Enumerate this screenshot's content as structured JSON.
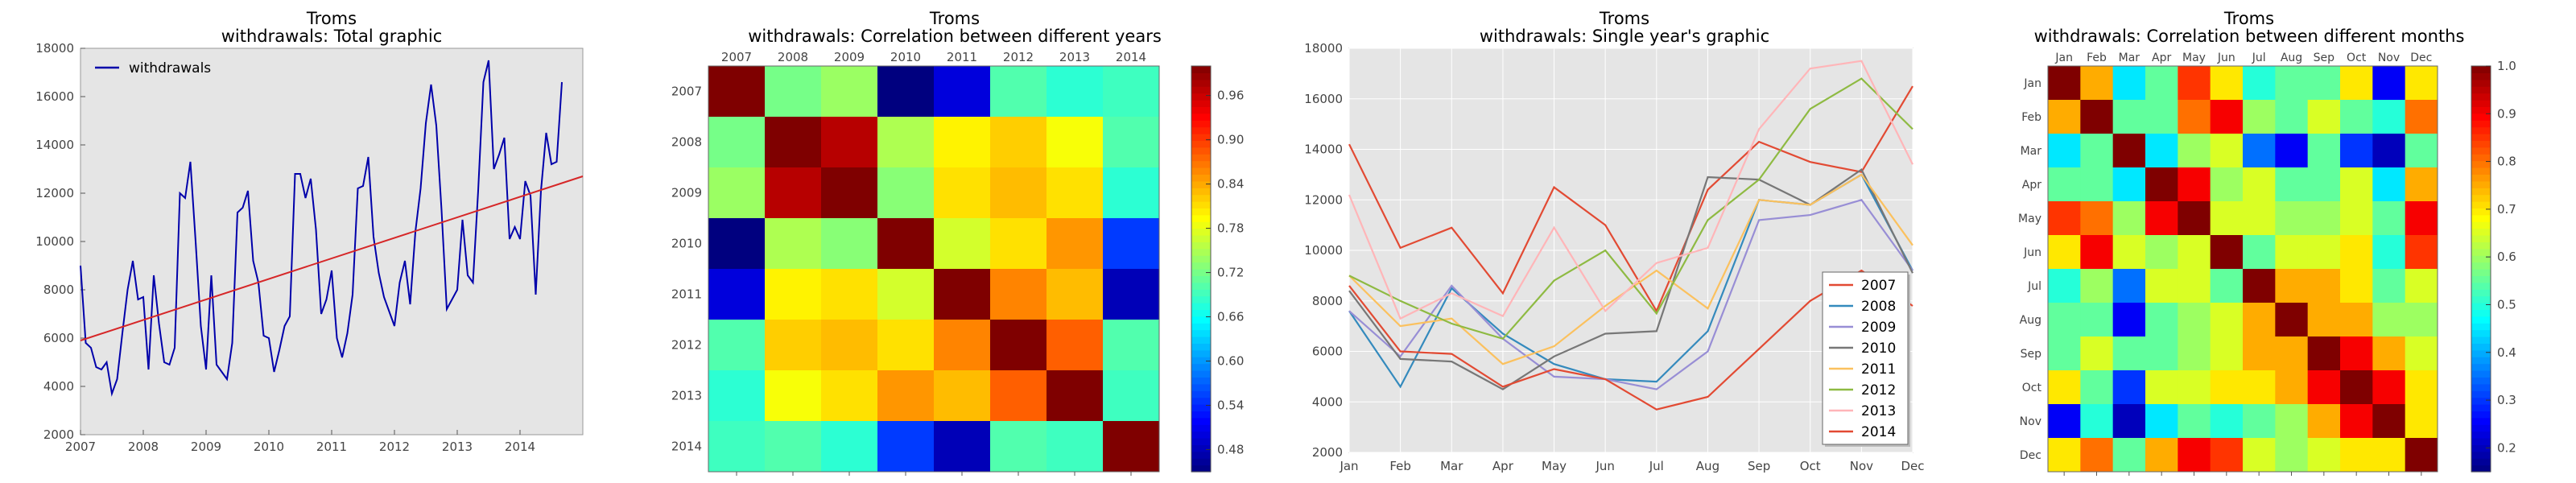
{
  "colormap": [
    "#00007f",
    "#0000ff",
    "#007fff",
    "#00ffff",
    "#7fff7f",
    "#ffff00",
    "#ff7f00",
    "#ff0000",
    "#7f0000"
  ],
  "chart_data": [
    {
      "type": "line",
      "title_line1": "Troms",
      "title_line2": "withdrawals: Total graphic",
      "x_ticks": [
        "2007",
        "2008",
        "2009",
        "2010",
        "2011",
        "2012",
        "2013",
        "2014"
      ],
      "y_ticks": [
        "2000",
        "4000",
        "6000",
        "8000",
        "10000",
        "12000",
        "14000",
        "16000",
        "18000"
      ],
      "xlim": [
        2007,
        2015
      ],
      "ylim": [
        2000,
        18000
      ],
      "legend": "withdrawals",
      "legend_position": "top-left",
      "grid": false,
      "series": [
        {
          "name": "withdrawals",
          "color": "#0000aa",
          "start": 2007.0,
          "step": 0.08333,
          "values": [
            9000,
            5800,
            5600,
            4800,
            4700,
            5000,
            3700,
            4300,
            6200,
            8000,
            9200,
            7600,
            7700,
            4700,
            8600,
            6600,
            5000,
            4900,
            5600,
            12000,
            11800,
            13300,
            10000,
            6500,
            4700,
            8600,
            4900,
            4600,
            4300,
            5800,
            11200,
            11400,
            12100,
            9200,
            8300,
            6100,
            6000,
            4600,
            5500,
            6500,
            6900,
            12800,
            12800,
            11800,
            12600,
            10500,
            7000,
            7600,
            8800,
            6000,
            5200,
            6200,
            7800,
            12200,
            12300,
            13500,
            10200,
            8700,
            7700,
            7100,
            6500,
            8300,
            9200,
            7400,
            10400,
            12200,
            14900,
            16500,
            14800,
            11300,
            7200,
            7600,
            8000,
            10900,
            8600,
            8300,
            12100,
            16600,
            17500,
            13000,
            13600,
            14300,
            10100,
            10600,
            10100,
            12500,
            11900,
            7800,
            12100,
            14500,
            13200,
            13300,
            16600
          ]
        },
        {
          "name": "trend",
          "color": "#d62728",
          "x": [
            2007,
            2015
          ],
          "values": [
            5900,
            12700
          ]
        }
      ]
    },
    {
      "type": "heatmap",
      "title_line1": "Troms",
      "title_line2": "withdrawals: Correlation between different years",
      "labels": [
        "2007",
        "2008",
        "2009",
        "2010",
        "2011",
        "2012",
        "2013",
        "2014"
      ],
      "colorbar_ticks": [
        "0.48",
        "0.54",
        "0.60",
        "0.66",
        "0.72",
        "0.78",
        "0.84",
        "0.90",
        "0.96"
      ],
      "colorbar_range": [
        0.45,
        1.0
      ],
      "values": [
        [
          1.0,
          0.72,
          0.74,
          0.45,
          0.5,
          0.7,
          0.68,
          0.69
        ],
        [
          0.72,
          1.0,
          0.97,
          0.75,
          0.8,
          0.82,
          0.79,
          0.7
        ],
        [
          0.74,
          0.97,
          1.0,
          0.73,
          0.81,
          0.83,
          0.81,
          0.68
        ],
        [
          0.45,
          0.75,
          0.73,
          1.0,
          0.77,
          0.81,
          0.85,
          0.55
        ],
        [
          0.5,
          0.8,
          0.81,
          0.77,
          1.0,
          0.86,
          0.83,
          0.48
        ],
        [
          0.7,
          0.82,
          0.83,
          0.81,
          0.86,
          1.0,
          0.88,
          0.7
        ],
        [
          0.68,
          0.79,
          0.81,
          0.85,
          0.83,
          0.88,
          1.0,
          0.69
        ],
        [
          0.69,
          0.7,
          0.68,
          0.55,
          0.48,
          0.7,
          0.69,
          1.0
        ]
      ]
    },
    {
      "type": "line",
      "title_line1": "Troms",
      "title_line2": "withdrawals: Single year's graphic",
      "x_ticks": [
        "Jan",
        "Feb",
        "Mar",
        "Apr",
        "May",
        "Jun",
        "Jul",
        "Aug",
        "Sep",
        "Oct",
        "Nov",
        "Dec"
      ],
      "y_ticks": [
        "2000",
        "4000",
        "6000",
        "8000",
        "10000",
        "12000",
        "14000",
        "16000",
        "18000"
      ],
      "ylim": [
        2000,
        18000
      ],
      "legend_position": "lower-right",
      "grid": true,
      "series": [
        {
          "name": "2007",
          "color": "#e24a33",
          "values": [
            14200,
            10100,
            10900,
            8300,
            12500,
            11000,
            7600,
            12400,
            14300,
            13500,
            13100,
            16500
          ]
        },
        {
          "name": "2008",
          "color": "#348abd",
          "values": [
            7600,
            4600,
            8500,
            6700,
            5500,
            4900,
            4800,
            6800,
            12000,
            11800,
            13000,
            9200
          ]
        },
        {
          "name": "2009",
          "color": "#988ed5",
          "values": [
            7600,
            5800,
            8600,
            6500,
            5000,
            4900,
            4500,
            6000,
            11200,
            11400,
            12000,
            9200
          ]
        },
        {
          "name": "2010",
          "color": "#777777",
          "values": [
            8400,
            5700,
            5600,
            4500,
            5800,
            6700,
            6800,
            12900,
            12800,
            11800,
            13200,
            9100
          ]
        },
        {
          "name": "2011",
          "color": "#fbc15e",
          "values": [
            9000,
            7000,
            7300,
            5500,
            6200,
            7800,
            9200,
            7700,
            12000,
            11800,
            13000,
            10200
          ]
        },
        {
          "name": "2012",
          "color": "#8eba42",
          "values": [
            9000,
            8000,
            7100,
            6500,
            8800,
            10000,
            7500,
            11200,
            12800,
            15600,
            16800,
            14800
          ]
        },
        {
          "name": "2013",
          "color": "#ffb5b8",
          "values": [
            12200,
            7300,
            8300,
            7400,
            10900,
            7600,
            9500,
            10100,
            14800,
            17200,
            17500,
            13400
          ]
        },
        {
          "name": "2014",
          "color": "#e24a33",
          "values": [
            8600,
            6000,
            5900,
            4600,
            5300,
            4900,
            3700,
            4200,
            6100,
            8000,
            9200,
            7800
          ]
        }
      ]
    },
    {
      "type": "heatmap",
      "title_line1": "Troms",
      "title_line2": "withdrawals: Correlation between different months",
      "labels": [
        "Jan",
        "Feb",
        "Mar",
        "Apr",
        "May",
        "Jun",
        "Jul",
        "Aug",
        "Sep",
        "Oct",
        "Nov",
        "Dec"
      ],
      "colorbar_ticks": [
        "0.2",
        "0.3",
        "0.4",
        "0.5",
        "0.6",
        "0.7",
        "0.8",
        "0.9",
        "1.0"
      ],
      "colorbar_range": [
        0.15,
        1.0
      ],
      "values": [
        [
          1.0,
          0.75,
          0.45,
          0.55,
          0.85,
          0.7,
          0.5,
          0.55,
          0.55,
          0.7,
          0.25,
          0.7
        ],
        [
          0.75,
          1.0,
          0.55,
          0.55,
          0.8,
          0.9,
          0.6,
          0.55,
          0.65,
          0.55,
          0.5,
          0.8
        ],
        [
          0.45,
          0.55,
          1.0,
          0.45,
          0.6,
          0.65,
          0.35,
          0.25,
          0.55,
          0.3,
          0.2,
          0.55
        ],
        [
          0.55,
          0.55,
          0.45,
          1.0,
          0.9,
          0.6,
          0.65,
          0.55,
          0.55,
          0.65,
          0.45,
          0.75
        ],
        [
          0.85,
          0.8,
          0.6,
          0.9,
          1.0,
          0.65,
          0.65,
          0.6,
          0.6,
          0.65,
          0.55,
          0.9
        ],
        [
          0.7,
          0.9,
          0.65,
          0.6,
          0.65,
          1.0,
          0.55,
          0.65,
          0.65,
          0.7,
          0.5,
          0.85
        ],
        [
          0.5,
          0.6,
          0.35,
          0.65,
          0.65,
          0.55,
          1.0,
          0.75,
          0.75,
          0.7,
          0.55,
          0.65
        ],
        [
          0.55,
          0.55,
          0.25,
          0.55,
          0.6,
          0.65,
          0.75,
          1.0,
          0.75,
          0.75,
          0.6,
          0.6
        ],
        [
          0.55,
          0.65,
          0.55,
          0.55,
          0.6,
          0.65,
          0.75,
          0.75,
          1.0,
          0.9,
          0.75,
          0.65
        ],
        [
          0.7,
          0.55,
          0.3,
          0.65,
          0.65,
          0.7,
          0.7,
          0.75,
          0.9,
          1.0,
          0.9,
          0.7
        ],
        [
          0.25,
          0.5,
          0.2,
          0.45,
          0.55,
          0.5,
          0.55,
          0.6,
          0.75,
          0.9,
          1.0,
          0.7
        ],
        [
          0.7,
          0.8,
          0.55,
          0.75,
          0.9,
          0.85,
          0.65,
          0.6,
          0.65,
          0.7,
          0.7,
          1.0
        ]
      ]
    }
  ]
}
